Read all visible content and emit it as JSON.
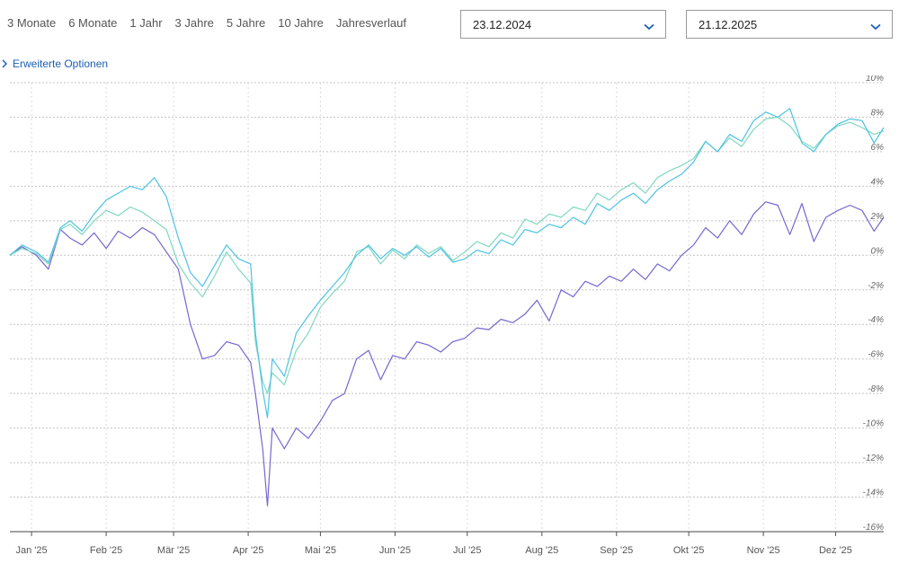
{
  "ranges": [
    "3 Monate",
    "6 Monate",
    "1 Jahr",
    "3 Jahre",
    "5 Jahre",
    "10 Jahre",
    "Jahresverlauf"
  ],
  "date_from": {
    "value": "23.12.2024",
    "icon": "chevron-down-icon"
  },
  "date_to": {
    "value": "21.12.2025",
    "icon": "chevron-down-icon"
  },
  "advanced_options": {
    "label": "Erweiterte Optionen",
    "icon": "chevron-right-icon"
  },
  "colors": {
    "accent": "#1a5fb4",
    "series": [
      "#7568cf",
      "#7fd8c0",
      "#4cc3e4"
    ]
  },
  "chart_data": {
    "type": "line",
    "title": "",
    "xlabel": "",
    "ylabel": "",
    "y_unit": "%",
    "ylim": [
      -16,
      10
    ],
    "y_ticks": [
      10,
      8,
      6,
      4,
      2,
      0,
      -2,
      -4,
      -6,
      -8,
      -10,
      -12,
      -14,
      -16
    ],
    "y_tick_labels": [
      "10%",
      "8%",
      "6%",
      "4%",
      "2%",
      "0%",
      "-2%",
      "-4%",
      "-6%",
      "-8%",
      "-10%",
      "-12%",
      "-14%",
      "-16%"
    ],
    "x_ticks": [
      "2025-01-01",
      "2025-02-01",
      "2025-03-01",
      "2025-04-01",
      "2025-05-01",
      "2025-06-01",
      "2025-07-01",
      "2025-08-01",
      "2025-09-01",
      "2025-10-01",
      "2025-11-01",
      "2025-12-01"
    ],
    "x_tick_labels": [
      "Jan '25",
      "Feb '25",
      "Mär '25",
      "Apr '25",
      "Mai '25",
      "Jun '25",
      "Jul '25",
      "Aug '25",
      "Sep '25",
      "Okt '25",
      "Nov '25",
      "Dez '25"
    ],
    "xlim": [
      "2024-12-23",
      "2025-12-21"
    ],
    "grid": true,
    "y_axis_side": "right",
    "legend": "none",
    "series": [
      {
        "color": "#7568cf",
        "x": [
          "2024-12-23",
          "2024-12-28",
          "2025-01-03",
          "2025-01-08",
          "2025-01-13",
          "2025-01-17",
          "2025-01-22",
          "2025-01-27",
          "2025-02-01",
          "2025-02-06",
          "2025-02-11",
          "2025-02-16",
          "2025-02-21",
          "2025-02-26",
          "2025-03-03",
          "2025-03-08",
          "2025-03-13",
          "2025-03-18",
          "2025-03-23",
          "2025-03-28",
          "2025-04-02",
          "2025-04-04",
          "2025-04-07",
          "2025-04-09",
          "2025-04-11",
          "2025-04-16",
          "2025-04-21",
          "2025-04-26",
          "2025-05-01",
          "2025-05-06",
          "2025-05-11",
          "2025-05-16",
          "2025-05-21",
          "2025-05-26",
          "2025-05-31",
          "2025-06-05",
          "2025-06-10",
          "2025-06-15",
          "2025-06-20",
          "2025-06-25",
          "2025-06-30",
          "2025-07-05",
          "2025-07-10",
          "2025-07-15",
          "2025-07-20",
          "2025-07-25",
          "2025-07-30",
          "2025-08-04",
          "2025-08-09",
          "2025-08-14",
          "2025-08-19",
          "2025-08-24",
          "2025-08-29",
          "2025-09-03",
          "2025-09-08",
          "2025-09-13",
          "2025-09-18",
          "2025-09-23",
          "2025-09-28",
          "2025-10-03",
          "2025-10-08",
          "2025-10-13",
          "2025-10-18",
          "2025-10-23",
          "2025-10-28",
          "2025-11-02",
          "2025-11-07",
          "2025-11-12",
          "2025-11-17",
          "2025-11-22",
          "2025-11-27",
          "2025-12-02",
          "2025-12-07",
          "2025-12-12",
          "2025-12-17",
          "2025-12-21"
        ],
        "y": [
          0.0,
          0.5,
          0.0,
          -0.8,
          1.5,
          1.0,
          0.6,
          1.3,
          0.4,
          1.4,
          1.0,
          1.6,
          1.2,
          0.2,
          -0.8,
          -4.0,
          -6.0,
          -5.8,
          -5.0,
          -5.2,
          -6.2,
          -8.0,
          -11.2,
          -14.5,
          -10.0,
          -11.2,
          -10.0,
          -10.6,
          -9.6,
          -8.4,
          -8.0,
          -6.0,
          -5.5,
          -7.2,
          -5.8,
          -6.0,
          -5.0,
          -5.2,
          -5.6,
          -5.0,
          -4.8,
          -4.2,
          -4.3,
          -3.7,
          -3.9,
          -3.4,
          -2.6,
          -3.8,
          -2.0,
          -2.4,
          -1.5,
          -1.8,
          -1.2,
          -1.5,
          -0.8,
          -1.4,
          -0.5,
          -0.9,
          0.0,
          0.6,
          1.6,
          1.0,
          2.0,
          1.2,
          2.4,
          3.1,
          2.9,
          1.2,
          3.0,
          0.8,
          2.2,
          2.6,
          2.9,
          2.6,
          1.4,
          2.2
        ]
      },
      {
        "color": "#7fd8c0",
        "x": [
          "2024-12-23",
          "2024-12-28",
          "2025-01-03",
          "2025-01-08",
          "2025-01-13",
          "2025-01-17",
          "2025-01-22",
          "2025-01-27",
          "2025-02-01",
          "2025-02-06",
          "2025-02-11",
          "2025-02-16",
          "2025-02-21",
          "2025-02-26",
          "2025-03-03",
          "2025-03-08",
          "2025-03-13",
          "2025-03-18",
          "2025-03-23",
          "2025-03-28",
          "2025-04-02",
          "2025-04-04",
          "2025-04-07",
          "2025-04-09",
          "2025-04-11",
          "2025-04-16",
          "2025-04-21",
          "2025-04-26",
          "2025-05-01",
          "2025-05-06",
          "2025-05-11",
          "2025-05-16",
          "2025-05-21",
          "2025-05-26",
          "2025-05-31",
          "2025-06-05",
          "2025-06-10",
          "2025-06-15",
          "2025-06-20",
          "2025-06-25",
          "2025-06-30",
          "2025-07-05",
          "2025-07-10",
          "2025-07-15",
          "2025-07-20",
          "2025-07-25",
          "2025-07-30",
          "2025-08-04",
          "2025-08-09",
          "2025-08-14",
          "2025-08-19",
          "2025-08-24",
          "2025-08-29",
          "2025-09-03",
          "2025-09-08",
          "2025-09-13",
          "2025-09-18",
          "2025-09-23",
          "2025-09-28",
          "2025-10-03",
          "2025-10-08",
          "2025-10-13",
          "2025-10-18",
          "2025-10-23",
          "2025-10-28",
          "2025-11-02",
          "2025-11-07",
          "2025-11-12",
          "2025-11-17",
          "2025-11-22",
          "2025-11-27",
          "2025-12-02",
          "2025-12-07",
          "2025-12-12",
          "2025-12-17",
          "2025-12-21"
        ],
        "y": [
          0.0,
          0.4,
          0.1,
          -0.5,
          1.5,
          1.8,
          1.2,
          2.0,
          2.6,
          2.3,
          2.8,
          2.5,
          2.0,
          1.5,
          -0.5,
          -1.6,
          -2.4,
          -1.2,
          0.2,
          -0.8,
          -1.6,
          -5.0,
          -7.3,
          -8.0,
          -6.8,
          -7.5,
          -5.5,
          -4.5,
          -3.0,
          -2.2,
          -1.5,
          0.2,
          0.5,
          -0.5,
          0.3,
          -0.2,
          0.6,
          0.1,
          0.5,
          -0.3,
          0.2,
          0.8,
          0.5,
          1.3,
          1.0,
          2.1,
          1.8,
          2.4,
          2.2,
          2.8,
          2.6,
          3.6,
          3.2,
          3.8,
          4.2,
          3.6,
          4.5,
          4.9,
          5.2,
          5.6,
          6.6,
          6.0,
          6.8,
          6.3,
          7.3,
          7.9,
          8.0,
          7.5,
          6.6,
          6.2,
          7.0,
          7.5,
          7.7,
          7.4,
          7.0,
          7.2
        ]
      },
      {
        "color": "#4cc3e4",
        "x": [
          "2024-12-23",
          "2024-12-28",
          "2025-01-03",
          "2025-01-08",
          "2025-01-13",
          "2025-01-17",
          "2025-01-22",
          "2025-01-27",
          "2025-02-01",
          "2025-02-06",
          "2025-02-11",
          "2025-02-16",
          "2025-02-21",
          "2025-02-26",
          "2025-03-03",
          "2025-03-08",
          "2025-03-13",
          "2025-03-18",
          "2025-03-23",
          "2025-03-28",
          "2025-04-02",
          "2025-04-04",
          "2025-04-07",
          "2025-04-09",
          "2025-04-11",
          "2025-04-16",
          "2025-04-21",
          "2025-04-26",
          "2025-05-01",
          "2025-05-06",
          "2025-05-11",
          "2025-05-16",
          "2025-05-21",
          "2025-05-26",
          "2025-05-31",
          "2025-06-05",
          "2025-06-10",
          "2025-06-15",
          "2025-06-20",
          "2025-06-25",
          "2025-06-30",
          "2025-07-05",
          "2025-07-10",
          "2025-07-15",
          "2025-07-20",
          "2025-07-25",
          "2025-07-30",
          "2025-08-04",
          "2025-08-09",
          "2025-08-14",
          "2025-08-19",
          "2025-08-24",
          "2025-08-29",
          "2025-09-03",
          "2025-09-08",
          "2025-09-13",
          "2025-09-18",
          "2025-09-23",
          "2025-09-28",
          "2025-10-03",
          "2025-10-08",
          "2025-10-13",
          "2025-10-18",
          "2025-10-23",
          "2025-10-28",
          "2025-11-02",
          "2025-11-07",
          "2025-11-12",
          "2025-11-17",
          "2025-11-22",
          "2025-11-27",
          "2025-12-02",
          "2025-12-07",
          "2025-12-12",
          "2025-12-17",
          "2025-12-21"
        ],
        "y": [
          0.0,
          0.6,
          0.2,
          -0.4,
          1.6,
          2.0,
          1.4,
          2.4,
          3.2,
          3.6,
          4.0,
          3.8,
          4.5,
          3.4,
          1.0,
          -1.0,
          -1.8,
          -0.6,
          0.6,
          -0.2,
          -0.5,
          -4.5,
          -7.8,
          -9.4,
          -6.0,
          -7.0,
          -4.5,
          -3.5,
          -2.6,
          -1.8,
          -1.0,
          0.0,
          0.6,
          -0.2,
          0.4,
          0.0,
          0.5,
          -0.1,
          0.4,
          -0.4,
          -0.2,
          0.3,
          0.1,
          0.9,
          0.6,
          1.5,
          1.3,
          1.8,
          1.6,
          2.2,
          1.8,
          3.0,
          2.6,
          3.2,
          3.6,
          3.0,
          3.8,
          4.3,
          4.7,
          5.4,
          6.6,
          6.0,
          7.0,
          6.6,
          7.8,
          8.3,
          8.0,
          8.5,
          6.5,
          6.0,
          7.0,
          7.6,
          7.9,
          7.8,
          6.5,
          7.4
        ]
      }
    ]
  }
}
